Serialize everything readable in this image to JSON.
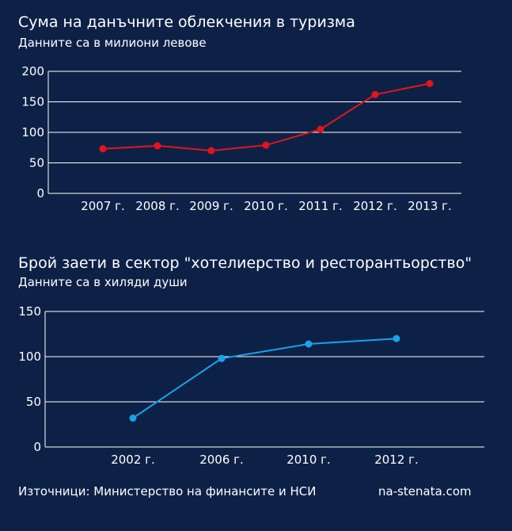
{
  "charts": [
    {
      "title": "Сума на данъчните облекчения в туризма",
      "subtitle": "Данните са в милиони левове"
    },
    {
      "title": "Брой заети в сектор \"хотелиерство и ресторантьорство\"",
      "subtitle": "Данните са в хиляди души"
    }
  ],
  "chart_data": [
    {
      "type": "line",
      "categories": [
        "2007 г.",
        "2008 г.",
        "2009 г.",
        "2010 г.",
        "2011 г.",
        "2012 г.",
        "2013 г."
      ],
      "values": [
        73,
        78,
        70,
        79,
        105,
        162,
        180
      ],
      "ylim": [
        0,
        200
      ],
      "yticks": [
        0,
        50,
        100,
        150,
        200
      ],
      "grid": true,
      "color": "#e3141b"
    },
    {
      "type": "line",
      "categories": [
        "2002 г.",
        "2006 г.",
        "2010 г.",
        "2012 г."
      ],
      "values": [
        32,
        98,
        114,
        120
      ],
      "ylim": [
        0,
        150
      ],
      "yticks": [
        0,
        50,
        100,
        150
      ],
      "grid": true,
      "color": "#1aa3e8"
    }
  ],
  "footer": {
    "source": "Източници: Министерство на финансите и НСИ",
    "site": "na-stenata.com"
  },
  "colors": {
    "background": "#0d2147",
    "grid": "#ffffff",
    "text": "#ffffff"
  }
}
